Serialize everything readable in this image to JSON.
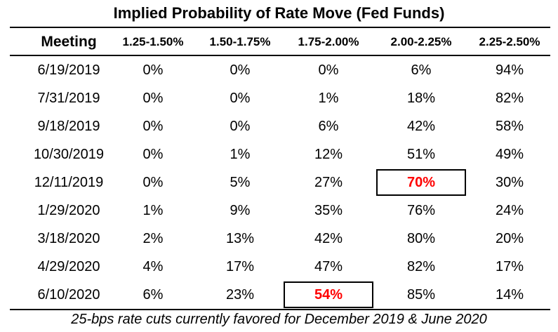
{
  "chart_data": {
    "type": "table",
    "title": "Implied Probability of Rate Move (Fed Funds)",
    "columns": [
      "Meeting",
      "1.25-1.50%",
      "1.50-1.75%",
      "1.75-2.00%",
      "2.00-2.25%",
      "2.25-2.50%"
    ],
    "rows": [
      [
        "6/19/2019",
        "0%",
        "0%",
        "0%",
        "6%",
        "94%"
      ],
      [
        "7/31/2019",
        "0%",
        "0%",
        "1%",
        "18%",
        "82%"
      ],
      [
        "9/18/2019",
        "0%",
        "0%",
        "6%",
        "42%",
        "58%"
      ],
      [
        "10/30/2019",
        "0%",
        "1%",
        "12%",
        "51%",
        "49%"
      ],
      [
        "12/11/2019",
        "0%",
        "5%",
        "27%",
        "70%",
        "30%"
      ],
      [
        "1/29/2020",
        "1%",
        "9%",
        "35%",
        "76%",
        "24%"
      ],
      [
        "3/18/2020",
        "2%",
        "13%",
        "42%",
        "80%",
        "20%"
      ],
      [
        "4/29/2020",
        "4%",
        "17%",
        "47%",
        "82%",
        "17%"
      ],
      [
        "6/10/2020",
        "6%",
        "23%",
        "54%",
        "85%",
        "14%"
      ]
    ],
    "highlights": [
      {
        "row": 4,
        "col": 4,
        "color": "#ff0000"
      },
      {
        "row": 8,
        "col": 3,
        "color": "#ff0000"
      }
    ],
    "footnote": "25-bps rate cuts currently favored for December 2019 & June 2020"
  }
}
